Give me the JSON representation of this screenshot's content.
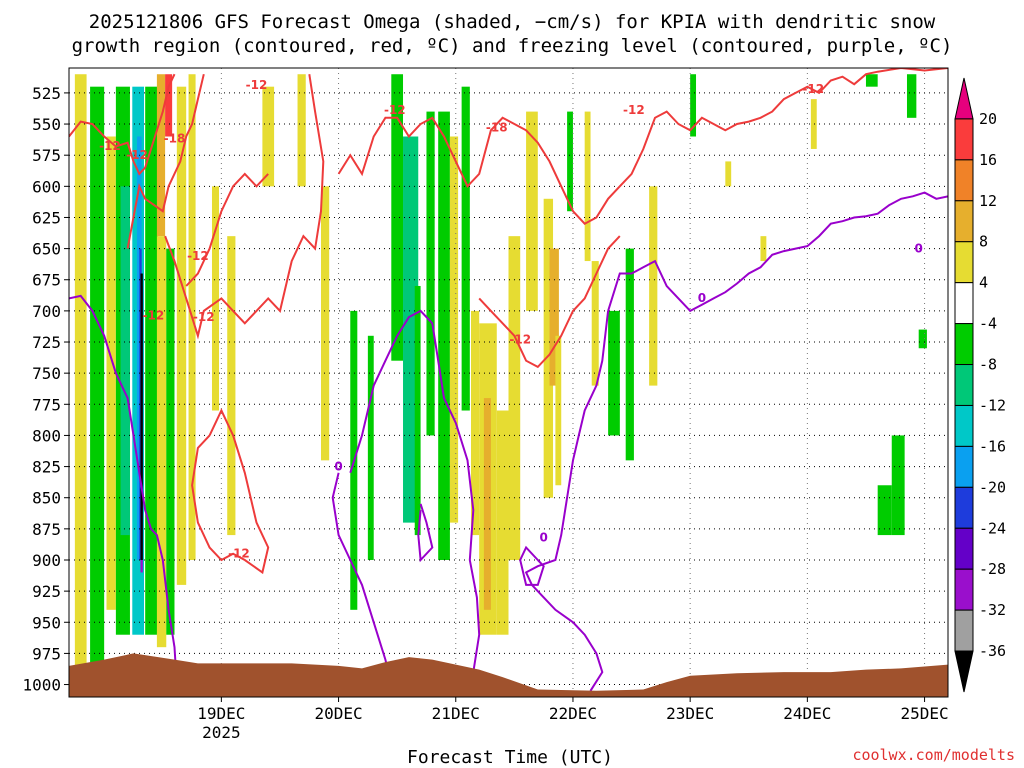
{
  "chart_data": {
    "type": "heatmap",
    "title_line1": "2025121806 GFS Forecast Omega (shaded, −cm/s) for KPIA with dendritic snow",
    "title_line2": "growth region (contoured, red, ºC) and freezing level (contoured, purple, ºC)",
    "xlabel": "Forecast Time (UTC)",
    "credit": "coolwx.com/modelts",
    "x_range_hours": [
      -13,
      62
    ],
    "x_ticks": [
      {
        "label": "19DEC",
        "hour": 0,
        "sub": "2025"
      },
      {
        "label": "20DEC",
        "hour": 10,
        "sub": ""
      },
      {
        "label": "21DEC",
        "hour": 20,
        "sub": ""
      },
      {
        "label": "22DEC",
        "hour": 30,
        "sub": ""
      },
      {
        "label": "23DEC",
        "hour": 40,
        "sub": ""
      },
      {
        "label": "24DEC",
        "hour": 50,
        "sub": ""
      },
      {
        "label": "25DEC",
        "hour": 60,
        "sub": ""
      }
    ],
    "y_axis": "pressure (hPa), inverted",
    "y_range": [
      1010,
      505
    ],
    "y_ticks": [
      525,
      550,
      575,
      600,
      625,
      650,
      675,
      700,
      725,
      750,
      775,
      800,
      825,
      850,
      875,
      900,
      925,
      950,
      975,
      1000
    ],
    "colorbar": {
      "levels": [
        -36,
        -32,
        -28,
        -24,
        -20,
        -16,
        -12,
        -8,
        -4,
        4,
        8,
        12,
        16,
        20
      ],
      "labels": [
        "20",
        "16",
        "12",
        "8",
        "4",
        "-4",
        "-8",
        "-12",
        "-16",
        "-20",
        "-24",
        "-28",
        "-32",
        "-36"
      ],
      "colors": [
        "#000000",
        "#a0a0a0",
        "#9a0fcc",
        "#6400c8",
        "#1e3cdc",
        "#0aa0f0",
        "#00c8c8",
        "#00c878",
        "#00cc00",
        "#ffffff",
        "#e6dc32",
        "#e6af2d",
        "#f08228",
        "#fa3c3c",
        "#e6007d"
      ]
    },
    "contour_labels": {
      "dgz": [
        "-12",
        "-18",
        "-12",
        "-12",
        "-12",
        "-12",
        "-18",
        "-12",
        "-12",
        "-12"
      ],
      "freezing": [
        "0",
        "0",
        "0",
        "0"
      ]
    },
    "series": [
      {
        "name": "DGZ -12C contour (red)",
        "color": "#ee3b3b"
      },
      {
        "name": "Freezing level 0C (purple)",
        "color": "#9900cc"
      },
      {
        "name": "Omega shading",
        "color": "#00cc00"
      },
      {
        "name": "Terrain / surface",
        "color": "#a0522d"
      }
    ]
  }
}
